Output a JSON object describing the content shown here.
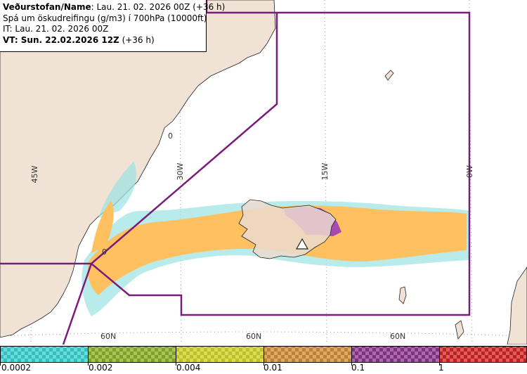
{
  "header": {
    "agency_label": "Veðurstofan/Name",
    "run_label": ": Lau. 21. 02. 2026 00Z (+36 h)",
    "product": "Spá um öskudreifingu (g/m3) í 700hPa (10000ft)",
    "issue_time": "IT: Lau. 21. 02. 2026 00Z",
    "valid_label": "VT: Sun. 22.02.2026 12Z",
    "valid_offset": " (+36 h)"
  },
  "grid_labels": {
    "lon": [
      "45W",
      "30W",
      "15W",
      "0W"
    ],
    "lat": [
      "60N",
      "60N",
      "60N"
    ],
    "points": [
      "0",
      "0"
    ]
  },
  "legend": {
    "ticks": [
      "0.0002",
      "0.002",
      "0.004",
      "0.01",
      "0.1",
      "1"
    ],
    "colors": [
      "#33cccc",
      "#88aa22",
      "#cccc22",
      "#cc8833",
      "#883388",
      "#cc2222"
    ]
  },
  "colors": {
    "land": "#f1e2d6",
    "sea": "#ffffff",
    "boundary": "#7a1c7a",
    "ash_low": "#ffc060",
    "ash_high": "#a64ab0",
    "ash_trace": "#9be3e3"
  }
}
